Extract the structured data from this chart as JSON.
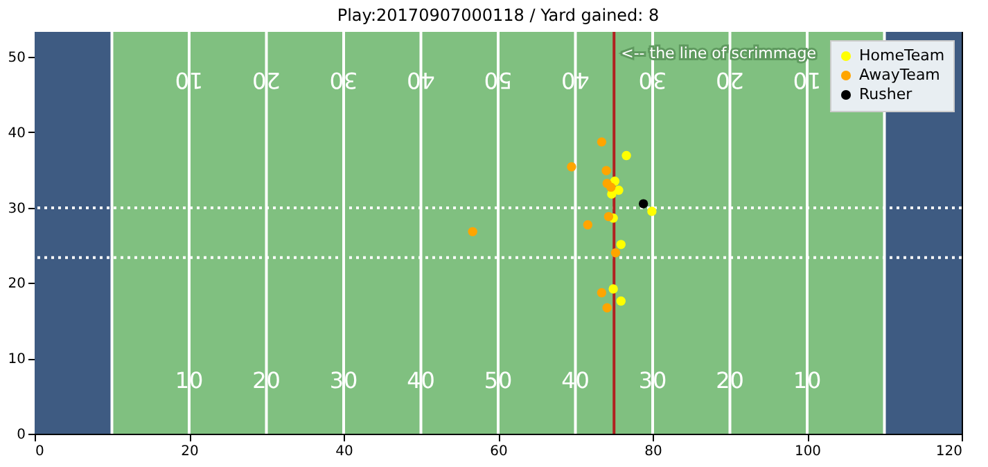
{
  "chart_data": {
    "type": "scatter",
    "title": "Play:20170907000118 / Yard gained: 8",
    "xlim": [
      0,
      120
    ],
    "ylim": [
      0,
      53.3
    ],
    "xticks": [
      0,
      20,
      40,
      60,
      80,
      100,
      120
    ],
    "yticks": [
      0,
      10,
      20,
      30,
      40,
      50
    ],
    "grid": false,
    "legend": "top right",
    "marker": "circle",
    "bands": [
      {
        "axis": "x",
        "from": 0,
        "to": 10,
        "color": "#3e5b82"
      },
      {
        "axis": "x",
        "from": 10,
        "to": 110,
        "color": "#80c080"
      },
      {
        "axis": "x",
        "from": 110,
        "to": 120,
        "color": "#3e5b82"
      }
    ],
    "ref_lines": [
      {
        "axis": "x",
        "value": 10,
        "color": "#ffffff"
      },
      {
        "axis": "x",
        "value": 20,
        "color": "#ffffff"
      },
      {
        "axis": "x",
        "value": 30,
        "color": "#ffffff"
      },
      {
        "axis": "x",
        "value": 40,
        "color": "#ffffff"
      },
      {
        "axis": "x",
        "value": 50,
        "color": "#ffffff"
      },
      {
        "axis": "x",
        "value": 60,
        "color": "#ffffff"
      },
      {
        "axis": "x",
        "value": 70,
        "color": "#ffffff"
      },
      {
        "axis": "x",
        "value": 80,
        "color": "#ffffff"
      },
      {
        "axis": "x",
        "value": 90,
        "color": "#ffffff"
      },
      {
        "axis": "x",
        "value": 100,
        "color": "#ffffff"
      },
      {
        "axis": "x",
        "value": 110,
        "color": "#ffffff"
      },
      {
        "axis": "y",
        "value": 23.36,
        "color": "#ffffff",
        "line_style": "dashed"
      },
      {
        "axis": "y",
        "value": 29.96,
        "color": "#ffffff",
        "line_style": "dashed"
      },
      {
        "axis": "x",
        "value": 75,
        "color": "#b02020",
        "label": "<-- the line of scrimmage"
      }
    ],
    "annotations": [
      {
        "text": "10",
        "x": 20,
        "y": 7
      },
      {
        "text": "20",
        "x": 30,
        "y": 7
      },
      {
        "text": "30",
        "x": 40,
        "y": 7
      },
      {
        "text": "40",
        "x": 50,
        "y": 7
      },
      {
        "text": "50",
        "x": 60,
        "y": 7
      },
      {
        "text": "40",
        "x": 70,
        "y": 7
      },
      {
        "text": "30",
        "x": 80,
        "y": 7
      },
      {
        "text": "20",
        "x": 90,
        "y": 7
      },
      {
        "text": "10",
        "x": 100,
        "y": 7
      },
      {
        "text": "10",
        "x": 20,
        "y": 47
      },
      {
        "text": "20",
        "x": 30,
        "y": 47
      },
      {
        "text": "30",
        "x": 40,
        "y": 47
      },
      {
        "text": "40",
        "x": 50,
        "y": 47
      },
      {
        "text": "50",
        "x": 60,
        "y": 47
      },
      {
        "text": "40",
        "x": 70,
        "y": 47
      },
      {
        "text": "30",
        "x": 80,
        "y": 47
      },
      {
        "text": "20",
        "x": 90,
        "y": 47
      },
      {
        "text": "10",
        "x": 100,
        "y": 47
      }
    ],
    "series": [
      {
        "name": "HomeTeam",
        "color": "#ffff00",
        "x": [
          76.6,
          75.1,
          75.6,
          74.7,
          79.9,
          74.9,
          75.9,
          74.9,
          75.9
        ],
        "values": [
          36.9,
          33.5,
          32.3,
          31.8,
          29.5,
          28.6,
          25.1,
          19.2,
          17.6
        ]
      },
      {
        "name": "AwayTeam",
        "color": "#ffa500",
        "x": [
          73.4,
          69.5,
          74.0,
          74.1,
          74.6,
          56.7,
          71.6,
          74.3,
          75.2,
          73.4,
          74.1
        ],
        "values": [
          38.7,
          35.4,
          34.9,
          33.2,
          32.7,
          26.8,
          27.7,
          28.8,
          24.0,
          18.7,
          16.7
        ]
      },
      {
        "name": "Rusher",
        "color": "#000000",
        "x": [
          78.8
        ],
        "values": [
          30.5
        ]
      }
    ]
  }
}
